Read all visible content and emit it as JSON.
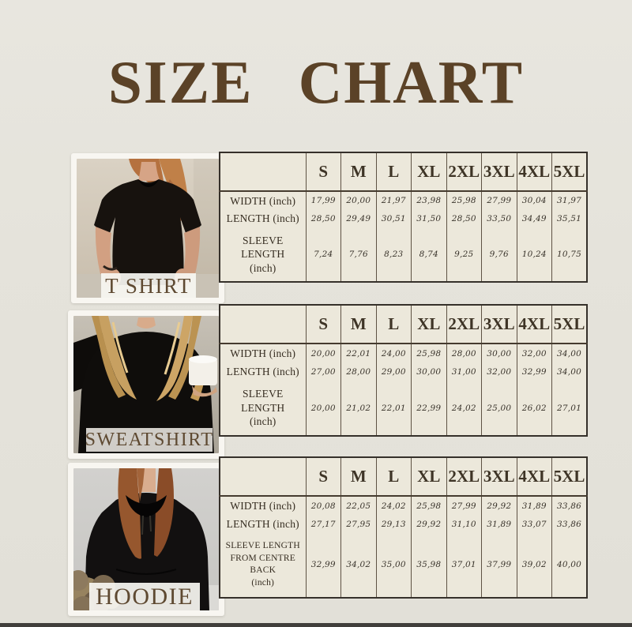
{
  "title": "SIZE CHART",
  "colors": {
    "background": "#e5e3db",
    "title_brown": "#5b4227",
    "table_bg": "#ece8db",
    "table_border": "#35302a",
    "label_text": "#5e4931",
    "bottom_bar": "#403e3b"
  },
  "sizes": [
    "S",
    "M",
    "L",
    "XL",
    "2XL",
    "3XL",
    "4XL",
    "5XL"
  ],
  "products": [
    {
      "name": "t-shirt",
      "label": "T SHIRT",
      "table": {
        "rows": [
          {
            "label": "WIDTH (inch)",
            "values": [
              "17,99",
              "20,00",
              "21,97",
              "23,98",
              "25,98",
              "27,99",
              "30,04",
              "31,97"
            ]
          },
          {
            "label": "LENGTH (inch)",
            "values": [
              "28,50",
              "29,49",
              "30,51",
              "31,50",
              "28,50",
              "33,50",
              "34,49",
              "35,51"
            ]
          },
          {
            "label": "SLEEVE LENGTH\n(inch)",
            "values": [
              "7,24",
              "7,76",
              "8,23",
              "8,74",
              "9,25",
              "9,76",
              "10,24",
              "10,75"
            ]
          }
        ]
      }
    },
    {
      "name": "sweatshirt",
      "label": "SWEATSHIRT",
      "table": {
        "rows": [
          {
            "label": "WIDTH (inch)",
            "values": [
              "20,00",
              "22,01",
              "24,00",
              "25,98",
              "28,00",
              "30,00",
              "32,00",
              "34,00"
            ]
          },
          {
            "label": "LENGTH (inch)",
            "values": [
              "27,00",
              "28,00",
              "29,00",
              "30,00",
              "31,00",
              "32,00",
              "32,99",
              "34,00"
            ]
          },
          {
            "label": "SLEEVE LENGTH\n(inch)",
            "values": [
              "20,00",
              "21,02",
              "22,01",
              "22,99",
              "24,02",
              "25,00",
              "26,02",
              "27,01"
            ]
          }
        ]
      }
    },
    {
      "name": "hoodie",
      "label": "HOODIE",
      "table": {
        "rows": [
          {
            "label": "WIDTH (inch)",
            "values": [
              "20,08",
              "22,05",
              "24,02",
              "25,98",
              "27,99",
              "29,92",
              "31,89",
              "33,86"
            ]
          },
          {
            "label": "LENGTH (inch)",
            "values": [
              "27,17",
              "27,95",
              "29,13",
              "29,92",
              "31,10",
              "31,89",
              "33,07",
              "33,86"
            ]
          },
          {
            "label": "SLEEVE LENGTH\nFROM CENTRE BACK\n(inch)",
            "values": [
              "32,99",
              "34,02",
              "35,00",
              "35,98",
              "37,01",
              "37,99",
              "39,02",
              "40,00"
            ]
          }
        ]
      }
    }
  ]
}
